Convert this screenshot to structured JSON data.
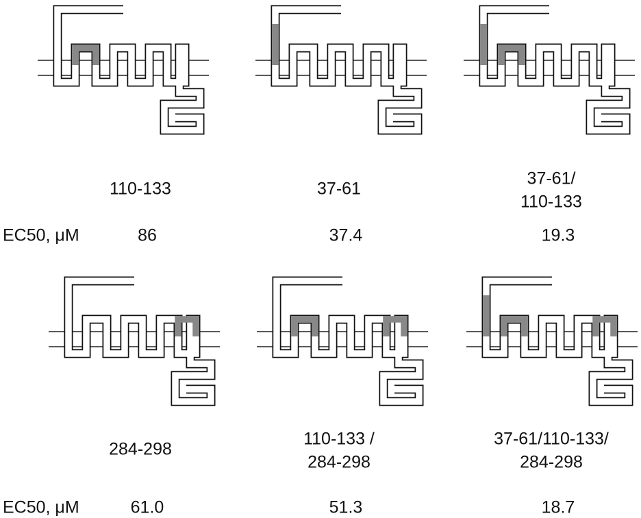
{
  "rows": [
    {
      "ec50_label": "EC50, μM",
      "panels": [
        {
          "label": [
            "110-133"
          ],
          "ec50": "86"
        },
        {
          "label": [
            "37-61"
          ],
          "ec50": "37.4"
        },
        {
          "label": [
            "37-61/",
            "110-133"
          ],
          "ec50": "19.3"
        }
      ]
    },
    {
      "ec50_label": "EC50, μM",
      "panels": [
        {
          "label": [
            "284-298"
          ],
          "ec50": "61.0"
        },
        {
          "label": [
            "110-133 /",
            "284-298"
          ],
          "ec50": "51.3"
        },
        {
          "label": [
            "37-61/110-133/",
            "284-298"
          ],
          "ec50": "18.7"
        }
      ]
    }
  ]
}
